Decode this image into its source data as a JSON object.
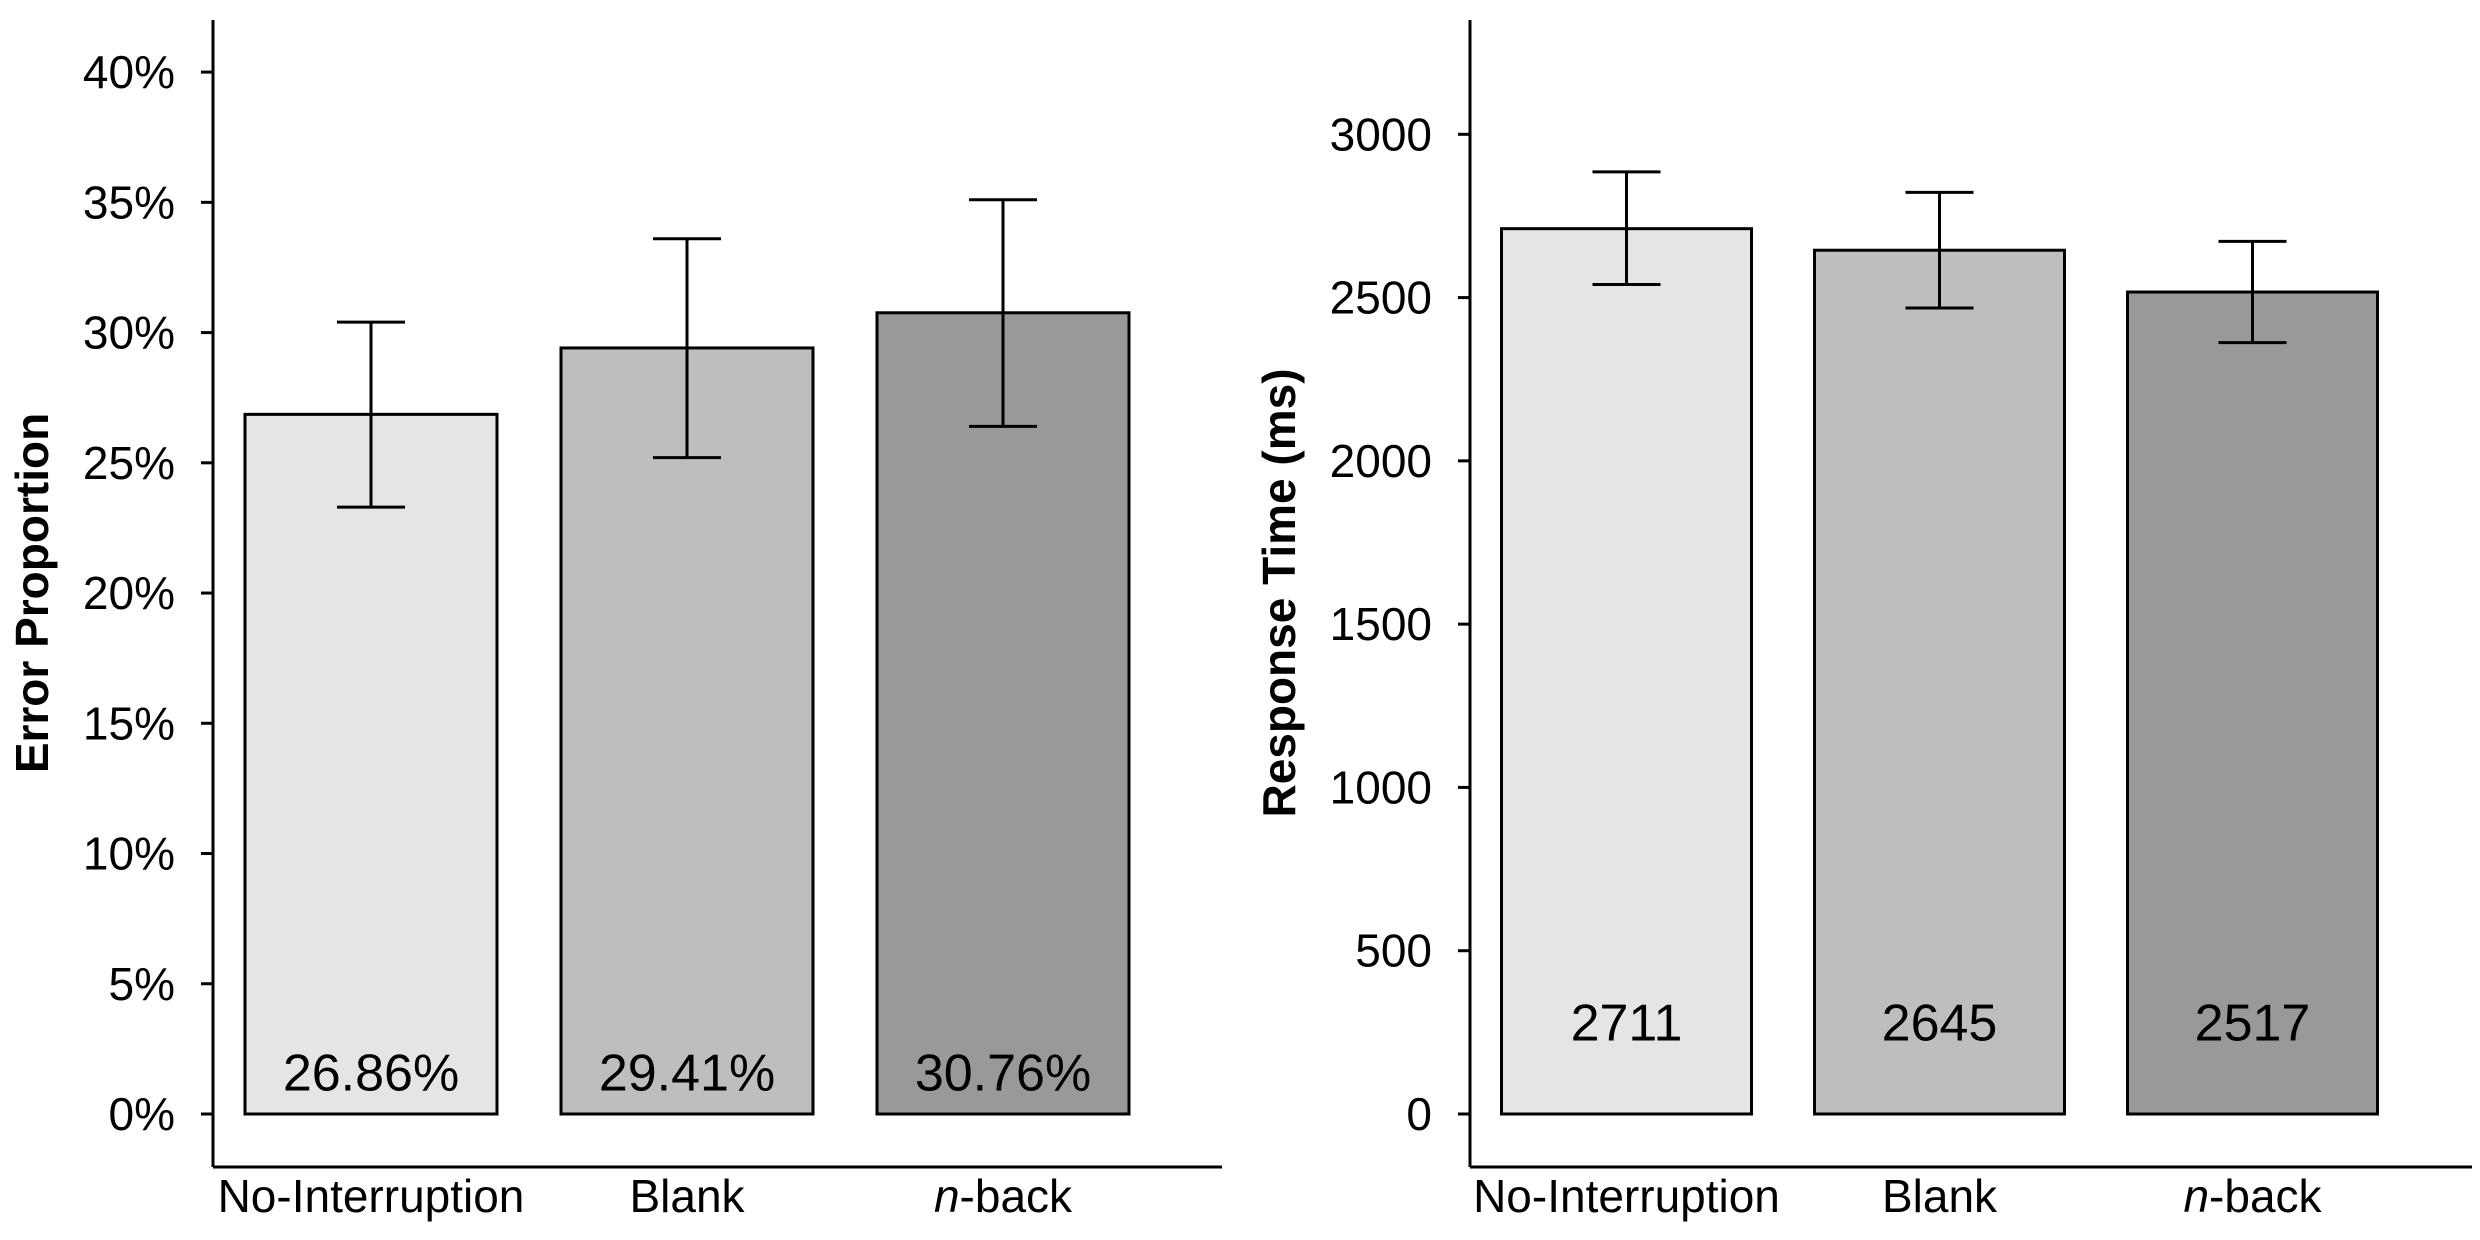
{
  "chart_data": [
    {
      "type": "bar",
      "categories": [
        "No-Interruption",
        "Blank",
        "n-back"
      ],
      "values": [
        26.86,
        29.41,
        30.76
      ],
      "value_labels": [
        "26.86%",
        "29.41%",
        "30.76%"
      ],
      "error_bars": [
        {
          "low": 23.3,
          "high": 30.4
        },
        {
          "low": 25.2,
          "high": 33.6
        },
        {
          "low": 26.4,
          "high": 35.1
        }
      ],
      "ylabel": "Error Proportion",
      "xlabel": "",
      "ylim": [
        0,
        42
      ],
      "yticks": [
        0,
        5,
        10,
        15,
        20,
        25,
        30,
        35,
        40
      ],
      "ytick_labels": [
        "0%",
        "5%",
        "10%",
        "15%",
        "20%",
        "25%",
        "30%",
        "35%",
        "40%"
      ],
      "bar_colors": [
        "#e5e5e5",
        "#bebebe",
        "#999999"
      ],
      "grid": false
    },
    {
      "type": "bar",
      "categories": [
        "No-Interruption",
        "Blank",
        "n-back"
      ],
      "values": [
        2711,
        2645,
        2517
      ],
      "value_labels": [
        "2711",
        "2645",
        "2517"
      ],
      "error_bars": [
        {
          "low": 2540,
          "high": 2885
        },
        {
          "low": 2468,
          "high": 2822
        },
        {
          "low": 2362,
          "high": 2672
        }
      ],
      "ylabel": "Response Time (ms)",
      "xlabel": "",
      "ylim": [
        0,
        3350
      ],
      "yticks": [
        0,
        500,
        1000,
        1500,
        2000,
        2500,
        3000
      ],
      "ytick_labels": [
        "0",
        "500",
        "1000",
        "1500",
        "2000",
        "2500",
        "3000"
      ],
      "bar_colors": [
        "#e5e5e5",
        "#bebebe",
        "#999999"
      ],
      "grid": false
    }
  ]
}
